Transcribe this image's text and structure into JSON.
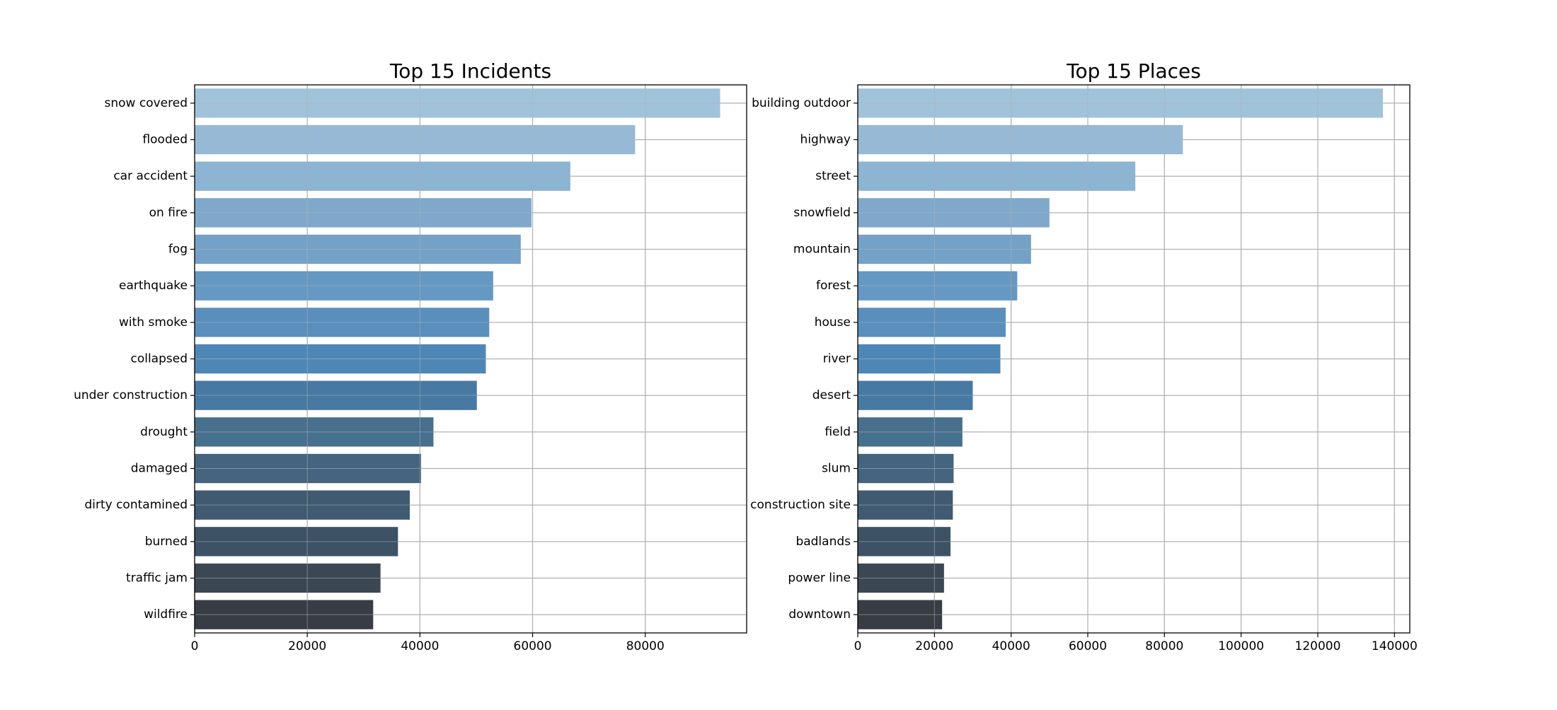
{
  "chart_data": [
    {
      "type": "bar",
      "orientation": "horizontal",
      "title": "Top 15 Incidents",
      "xlabel": "",
      "ylabel": "",
      "xlim": [
        0,
        98000
      ],
      "xticks": [
        0,
        20000,
        40000,
        60000,
        80000
      ],
      "grid": true,
      "categories": [
        "snow covered",
        "flooded",
        "car accident",
        "on fire",
        "fog",
        "earthquake",
        "with smoke",
        "collapsed",
        "under construction",
        "drought",
        "damaged",
        "dirty contamined",
        "burned",
        "traffic jam",
        "wildfire"
      ],
      "values": [
        93300,
        78200,
        66700,
        59800,
        57900,
        53000,
        52300,
        51700,
        50100,
        42400,
        40200,
        38200,
        36100,
        33000,
        31700
      ],
      "colors": [
        "#a1c3da",
        "#96bad6",
        "#8cb4d3",
        "#7fa8cb",
        "#74a1c7",
        "#6598c2",
        "#5a8fbd",
        "#4e87b6",
        "#4779a3",
        "#47708f",
        "#44647f",
        "#405a72",
        "#3d5265",
        "#3b4854",
        "#383d45"
      ]
    },
    {
      "type": "bar",
      "orientation": "horizontal",
      "title": "Top 15 Places",
      "xlabel": "",
      "ylabel": "",
      "xlim": [
        0,
        144000
      ],
      "xticks": [
        0,
        20000,
        40000,
        60000,
        80000,
        100000,
        120000,
        140000
      ],
      "grid": true,
      "categories": [
        "building outdoor",
        "highway",
        "street",
        "snowfield",
        "mountain",
        "forest",
        "house",
        "river",
        "desert",
        "field",
        "slum",
        "construction site",
        "badlands",
        "power line",
        "downtown"
      ],
      "values": [
        137000,
        84800,
        72400,
        50000,
        45200,
        41600,
        38600,
        37200,
        30000,
        27300,
        25000,
        24800,
        24200,
        22500,
        22000
      ],
      "colors": [
        "#a1c3da",
        "#96bad6",
        "#8cb4d3",
        "#7fa8cb",
        "#74a1c7",
        "#6598c2",
        "#5a8fbd",
        "#4e87b6",
        "#4779a3",
        "#47708f",
        "#44647f",
        "#405a72",
        "#3d5265",
        "#3b4854",
        "#383d45"
      ]
    }
  ]
}
